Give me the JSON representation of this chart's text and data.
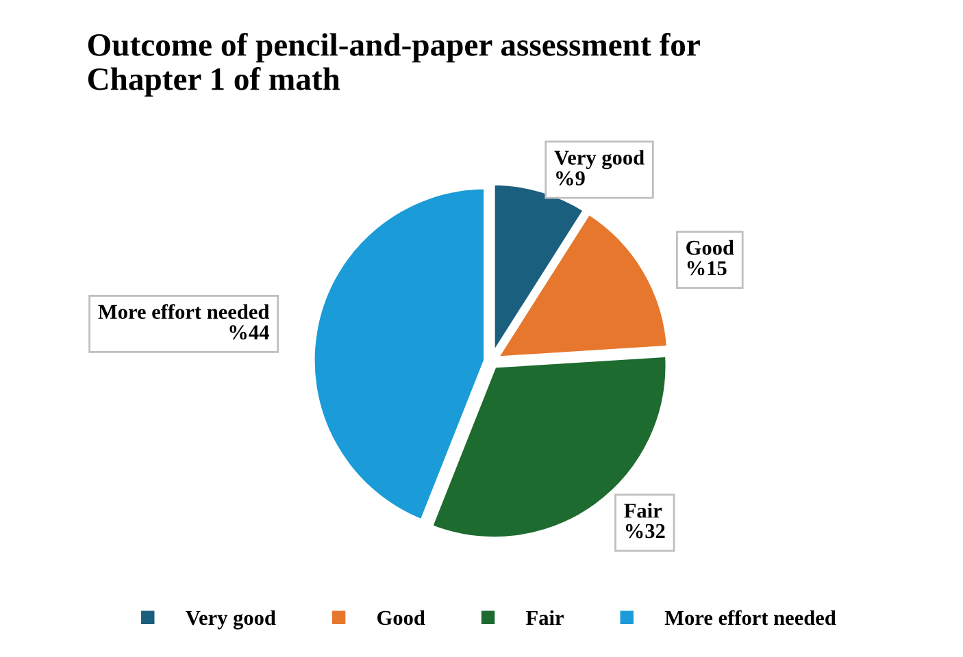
{
  "chart_data": {
    "type": "pie",
    "title": "Outcome of pencil-and-paper assessment for\nChapter 1 of math",
    "categories": [
      "Very good",
      "Good",
      "Fair",
      "More effort needed"
    ],
    "values": [
      9,
      15,
      32,
      44
    ],
    "colors": [
      "#1b5f7e",
      "#e8772e",
      "#1e6b30",
      "#1b9bd7"
    ],
    "value_labels": [
      "%9",
      "%15",
      "%32",
      "%44"
    ],
    "legend": "bottom"
  }
}
